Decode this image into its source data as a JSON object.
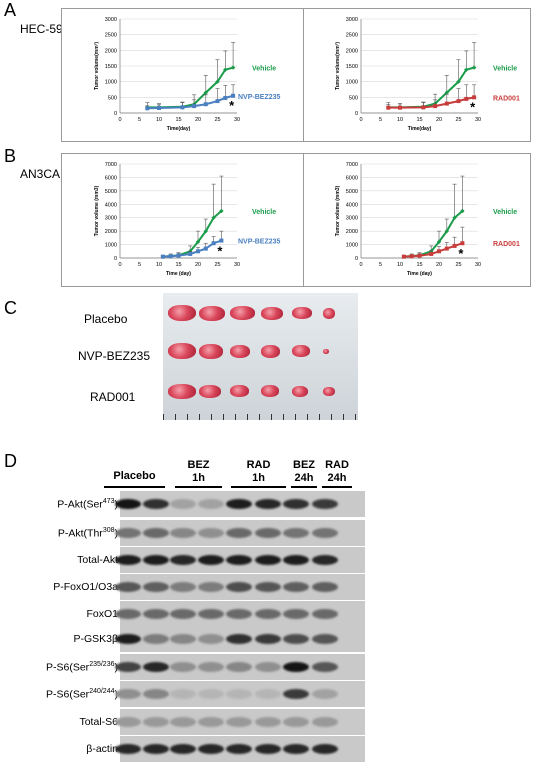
{
  "panels": {
    "A": "A",
    "B": "B",
    "C": "C",
    "D": "D"
  },
  "cells": {
    "A": "HEC-59",
    "B": "AN3CA"
  },
  "charts": [
    {
      "id": "A-left",
      "ylabel": "Tumor volume(mm³)",
      "xlabel": "Time(day)",
      "yticks": [
        0,
        500,
        1000,
        1500,
        2000,
        2500,
        3000
      ],
      "xticks": [
        0,
        5,
        10,
        15,
        20,
        25,
        30
      ],
      "xlim": [
        0,
        30
      ],
      "ylim": [
        0,
        3000
      ],
      "vehicle": {
        "label": "Vehicle",
        "x": [
          7,
          10,
          16,
          19,
          22,
          25,
          27,
          29
        ],
        "y": [
          180,
          180,
          200,
          280,
          650,
          1000,
          1380,
          1450
        ],
        "err": [
          150,
          120,
          150,
          300,
          550,
          700,
          600,
          800
        ],
        "color": "#1a9c4a"
      },
      "drug": {
        "label": "NVP-BEZ235",
        "x": [
          7,
          10,
          16,
          19,
          22,
          25,
          27,
          29
        ],
        "y": [
          150,
          160,
          180,
          220,
          280,
          380,
          480,
          550
        ],
        "err": [
          80,
          100,
          150,
          200,
          300,
          400,
          400,
          350
        ],
        "color": "#4a7fc0"
      },
      "star": "*"
    },
    {
      "id": "A-right",
      "ylabel": "Tumor volume(mm³)",
      "xlabel": "Time(day)",
      "yticks": [
        0,
        500,
        1000,
        1500,
        2000,
        2500,
        3000
      ],
      "xticks": [
        0,
        5,
        10,
        15,
        20,
        25,
        30
      ],
      "xlim": [
        0,
        30
      ],
      "ylim": [
        0,
        3000
      ],
      "vehicle": {
        "label": "Vehicle",
        "x": [
          7,
          10,
          16,
          19,
          22,
          25,
          27,
          29
        ],
        "y": [
          180,
          180,
          200,
          300,
          650,
          1000,
          1380,
          1450
        ],
        "err": [
          150,
          120,
          150,
          300,
          550,
          700,
          600,
          800
        ],
        "color": "#1a9c4a"
      },
      "drug": {
        "label": "RAD001",
        "x": [
          7,
          10,
          16,
          19,
          22,
          25,
          27,
          29
        ],
        "y": [
          170,
          170,
          180,
          220,
          300,
          380,
          450,
          500
        ],
        "err": [
          100,
          120,
          150,
          200,
          300,
          400,
          450,
          400
        ],
        "color": "#c83c3c"
      },
      "star": "*"
    },
    {
      "id": "B-left",
      "ylabel": "Tumor volume (mm3)",
      "xlabel": "Time (day)",
      "yticks": [
        0,
        1000,
        2000,
        3000,
        4000,
        5000,
        6000,
        7000
      ],
      "xticks": [
        0,
        5,
        10,
        15,
        20,
        25,
        30
      ],
      "xlim": [
        0,
        30
      ],
      "ylim": [
        0,
        7000
      ],
      "vehicle": {
        "label": "Vehicle",
        "x": [
          11,
          13,
          15,
          18,
          20,
          22,
          24,
          26
        ],
        "y": [
          100,
          150,
          200,
          500,
          1200,
          2000,
          3000,
          3500
        ],
        "err": [
          100,
          150,
          200,
          400,
          800,
          900,
          2500,
          2600
        ],
        "color": "#1a9c4a"
      },
      "drug": {
        "label": "NVP-BEZ235",
        "x": [
          11,
          13,
          15,
          18,
          20,
          22,
          24,
          26
        ],
        "y": [
          100,
          130,
          180,
          300,
          500,
          700,
          1100,
          1300
        ],
        "err": [
          80,
          100,
          150,
          200,
          300,
          400,
          500,
          700
        ],
        "color": "#4a7fc0"
      },
      "star": "*"
    },
    {
      "id": "B-right",
      "ylabel": "Tumor volume (mm3)",
      "xlabel": "Time (day)",
      "yticks": [
        0,
        1000,
        2000,
        3000,
        4000,
        5000,
        6000,
        7000
      ],
      "xticks": [
        0,
        5,
        10,
        15,
        20,
        25,
        30
      ],
      "xlim": [
        0,
        30
      ],
      "ylim": [
        0,
        7000
      ],
      "vehicle": {
        "label": "Vehicle",
        "x": [
          11,
          13,
          15,
          18,
          20,
          22,
          24,
          26
        ],
        "y": [
          100,
          150,
          200,
          500,
          1200,
          2000,
          3000,
          3500
        ],
        "err": [
          100,
          150,
          200,
          400,
          800,
          900,
          2500,
          2600
        ],
        "color": "#1a9c4a"
      },
      "drug": {
        "label": "RAD001",
        "x": [
          11,
          13,
          15,
          18,
          20,
          22,
          24,
          26
        ],
        "y": [
          100,
          130,
          170,
          300,
          500,
          700,
          900,
          1100
        ],
        "err": [
          80,
          100,
          150,
          250,
          350,
          450,
          650,
          1200
        ],
        "color": "#c83c3c"
      },
      "star": "*"
    }
  ],
  "tumors": {
    "rows": [
      {
        "label": "Placebo",
        "count": 6
      },
      {
        "label": "NVP-BEZ235",
        "count": 6
      },
      {
        "label": "RAD001",
        "count": 6
      }
    ]
  },
  "blot": {
    "groups": [
      {
        "label": "Placebo",
        "sub": ""
      },
      {
        "label": "BEZ",
        "sub": "1h"
      },
      {
        "label": "RAD",
        "sub": "1h"
      },
      {
        "label": "BEZ",
        "sub": "24h"
      },
      {
        "label": "RAD",
        "sub": "24h"
      }
    ],
    "rows": [
      {
        "main": "P-Akt(Ser",
        "sup": "473",
        "end": ")",
        "int": [
          0.95,
          0.8,
          0.2,
          0.2,
          0.9,
          0.85,
          0.8,
          0.75
        ]
      },
      {
        "main": "P-Akt(Thr",
        "sup": "308",
        "end": ")",
        "int": [
          0.45,
          0.5,
          0.35,
          0.3,
          0.5,
          0.5,
          0.45,
          0.45
        ]
      },
      {
        "main": "Total-Akt",
        "sup": "",
        "end": "",
        "int": [
          0.9,
          0.9,
          0.85,
          0.9,
          0.9,
          0.9,
          0.9,
          0.85
        ]
      },
      {
        "main": "P-FoxO1/O3a",
        "sup": "",
        "end": "",
        "int": [
          0.6,
          0.55,
          0.4,
          0.4,
          0.65,
          0.6,
          0.55,
          0.55
        ]
      },
      {
        "main": "FoxO1",
        "sup": "",
        "end": "",
        "int": [
          0.5,
          0.5,
          0.5,
          0.5,
          0.5,
          0.5,
          0.5,
          0.5
        ]
      },
      {
        "main": "P-GSK3β",
        "sup": "",
        "end": "",
        "int": [
          0.9,
          0.4,
          0.35,
          0.3,
          0.8,
          0.75,
          0.65,
          0.6
        ]
      },
      {
        "main": "P-S6(Ser",
        "sup": "235/236",
        "end": ")",
        "int": [
          0.7,
          0.85,
          0.3,
          0.3,
          0.35,
          0.3,
          0.95,
          0.6
        ]
      },
      {
        "main": "P-S6(Ser",
        "sup": "240/244",
        "end": ")",
        "int": [
          0.3,
          0.35,
          0.1,
          0.1,
          0.1,
          0.1,
          0.75,
          0.2
        ]
      },
      {
        "main": "Total-S6",
        "sup": "",
        "end": "",
        "int": [
          0.25,
          0.25,
          0.25,
          0.25,
          0.25,
          0.25,
          0.25,
          0.25
        ]
      },
      {
        "main": "β-actin",
        "sup": "",
        "end": "",
        "int": [
          0.85,
          0.85,
          0.85,
          0.85,
          0.85,
          0.85,
          0.85,
          0.85
        ]
      }
    ]
  }
}
